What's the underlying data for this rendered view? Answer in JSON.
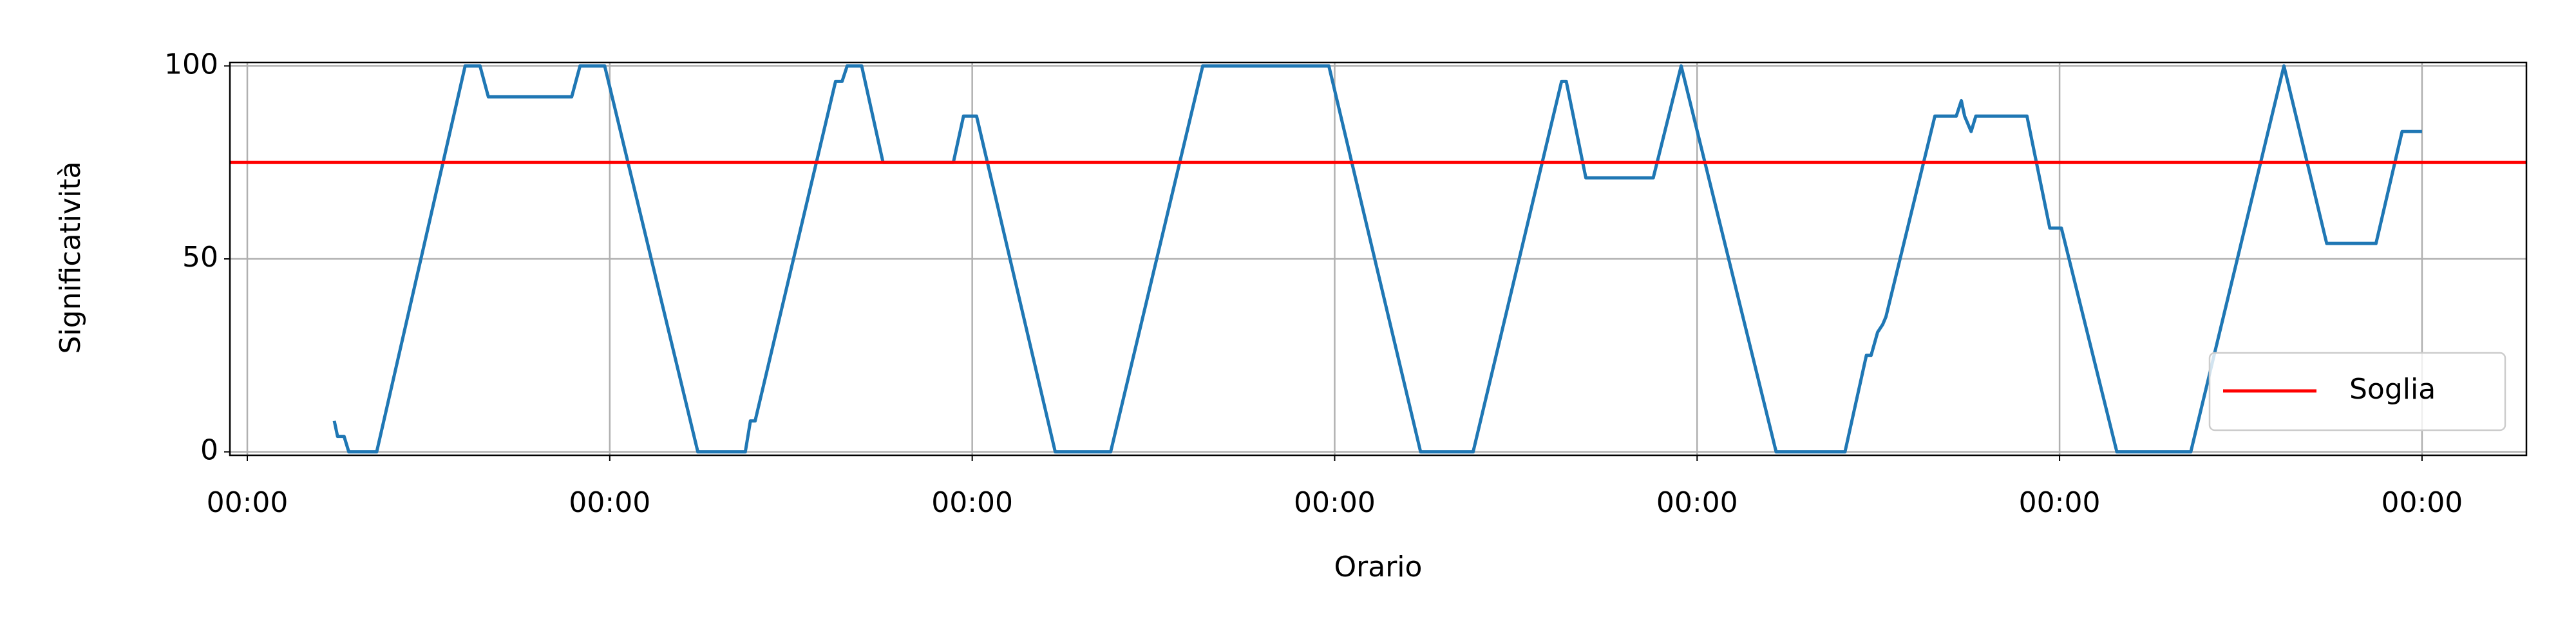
{
  "chart_data": {
    "type": "line",
    "x_label": "Orario",
    "y_label": "Significatività",
    "x": [
      0.24,
      0.249,
      0.267,
      0.28,
      0.357,
      0.601,
      0.642,
      0.665,
      0.895,
      0.918,
      0.986,
      1.243,
      1.374,
      1.388,
      1.401,
      1.623,
      1.641,
      1.655,
      1.695,
      1.754,
      1.948,
      1.976,
      2.012,
      2.229,
      2.382,
      2.636,
      2.984,
      3.237,
      3.382,
      3.626,
      3.639,
      3.693,
      3.879,
      3.956,
      4.218,
      4.408,
      4.467,
      4.48,
      4.498,
      4.512,
      4.521,
      4.656,
      4.715,
      4.729,
      4.738,
      4.756,
      4.769,
      4.91,
      4.973,
      5.005,
      5.158,
      5.362,
      5.619,
      5.737,
      5.873,
      5.945,
      6.0
    ],
    "series": [
      {
        "color": "#1f77b4",
        "values": [
          8,
          4,
          4,
          0,
          0,
          100,
          100,
          92,
          92,
          100,
          100,
          0,
          0,
          8,
          8,
          96,
          96,
          100,
          100,
          75,
          75,
          87,
          87,
          0,
          0,
          100,
          100,
          0,
          0,
          96,
          96,
          71,
          71,
          100,
          0,
          0,
          25,
          25,
          31,
          33,
          35,
          87,
          87,
          91,
          87,
          83,
          87,
          87,
          58,
          58,
          0,
          0,
          100,
          54,
          54,
          83,
          83
        ]
      }
    ],
    "threshold": {
      "name": "Soglia",
      "value": 75,
      "color": "#ff0000"
    },
    "xlim": [
      -0.048,
      6.288
    ],
    "xticks": [
      {
        "value": 0,
        "label": "00:00"
      },
      {
        "value": 1,
        "label": "00:00"
      },
      {
        "value": 2,
        "label": "00:00"
      },
      {
        "value": 3,
        "label": "00:00"
      },
      {
        "value": 4,
        "label": "00:00"
      },
      {
        "value": 5,
        "label": "00:00"
      },
      {
        "value": 6,
        "label": "00:00"
      }
    ],
    "ylim": [
      -0.9,
      100.9
    ],
    "yticks": [
      0,
      50,
      100
    ],
    "grid": true,
    "legend_position": "lower right"
  }
}
